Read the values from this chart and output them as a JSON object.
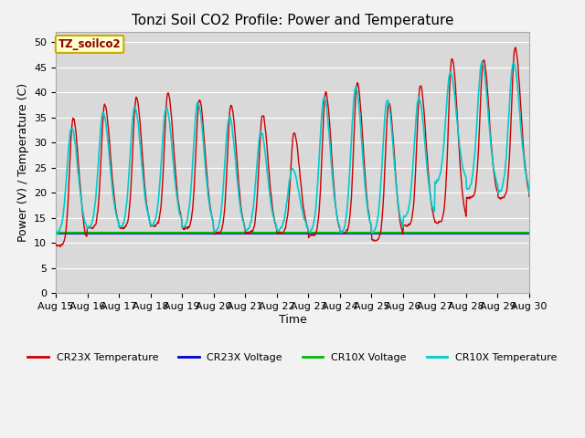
{
  "title": "Tonzi Soil CO2 Profile: Power and Temperature",
  "xlabel": "Time",
  "ylabel": "Power (V) / Temperature (C)",
  "ylim": [
    0,
    52
  ],
  "yticks": [
    0,
    5,
    10,
    15,
    20,
    25,
    30,
    35,
    40,
    45,
    50
  ],
  "x_tick_labels": [
    "Aug 15",
    "Aug 16",
    "Aug 17",
    "Aug 18",
    "Aug 19",
    "Aug 20",
    "Aug 21",
    "Aug 22",
    "Aug 23",
    "Aug 24",
    "Aug 25",
    "Aug 26",
    "Aug 27",
    "Aug 28",
    "Aug 29",
    "Aug 30"
  ],
  "cr23x_temp_color": "#cc0000",
  "cr23x_volt_color": "#0000cc",
  "cr10x_volt_color": "#00bb00",
  "cr10x_temp_color": "#00cccc",
  "plot_bg_color": "#d9d9d9",
  "fig_bg_color": "#f2f2f2",
  "legend_labels": [
    "CR23X Temperature",
    "CR23X Voltage",
    "CR10X Voltage",
    "CR10X Temperature"
  ],
  "label_box_color": "#ffffcc",
  "label_box_edge_color": "#ccaa00",
  "label_box_text": "TZ_soilco2",
  "label_text_color": "#880000",
  "title_fontsize": 11,
  "axis_label_fontsize": 9,
  "tick_fontsize": 8,
  "cr23x_volt_value": 11.9,
  "cr10x_volt_value": 12.1
}
